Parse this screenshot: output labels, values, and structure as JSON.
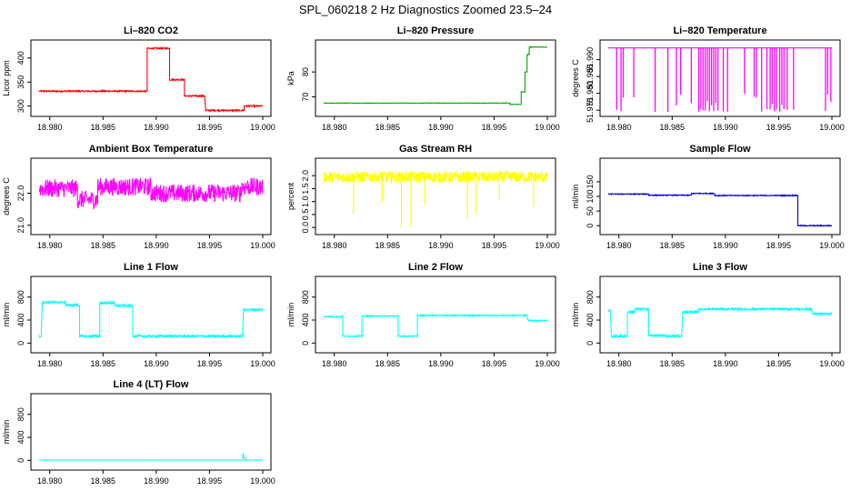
{
  "title": "SPL_060218  2 Hz Diagnostics Zoomed 23.5–24",
  "chart_data": [
    {
      "type": "line",
      "title": "Li–820 CO2",
      "xlabel": "",
      "ylabel": "Licor ppm",
      "xlim": [
        18.979,
        19.0
      ],
      "ylim": [
        288,
        428
      ],
      "color": "#ff0000",
      "xticks": [
        "18.980",
        "18.985",
        "18.990",
        "18.995",
        "19.000"
      ],
      "yticks": [
        "300",
        "350",
        "400"
      ],
      "series": [
        {
          "name": "CO2",
          "noise": 1.5,
          "segments": [
            [
              18.979,
              18.98895,
              331
            ],
            [
              18.98895,
              18.98915,
              331
            ],
            [
              18.98915,
              18.99115,
              420
            ],
            [
              18.99115,
              18.99125,
              420
            ],
            [
              18.99125,
              18.99255,
              355
            ],
            [
              18.99255,
              18.99265,
              355
            ],
            [
              18.99265,
              18.99455,
              321
            ],
            [
              18.99465,
              18.99795,
              291
            ],
            [
              18.99805,
              18.99825,
              291
            ],
            [
              18.99825,
              19.0,
              300
            ]
          ]
        }
      ]
    },
    {
      "type": "line",
      "title": "Li–820 Pressure",
      "xlabel": "",
      "ylabel": "kPa",
      "xlim": [
        18.979,
        19.0
      ],
      "ylim": [
        64,
        91
      ],
      "color": "#00aa00",
      "xticks": [
        "18.980",
        "18.985",
        "18.990",
        "18.995",
        "19.000"
      ],
      "yticks": [
        "70",
        "80"
      ],
      "series": [
        {
          "name": "Pressure",
          "noise": 0.1,
          "segments": [
            [
              18.979,
              18.9965,
              67.5
            ],
            [
              18.9965,
              18.99755,
              67
            ],
            [
              18.99755,
              18.9979,
              72
            ],
            [
              18.9979,
              18.9981,
              80
            ],
            [
              18.9981,
              18.9983,
              87
            ],
            [
              18.9983,
              18.9985,
              90
            ],
            [
              18.9985,
              19.0,
              90
            ]
          ]
        }
      ]
    },
    {
      "type": "line",
      "title": "Li–820 Temperature",
      "xlabel": "",
      "ylabel": "degrees C",
      "xlim": [
        18.979,
        19.0
      ],
      "ylim": [
        51.9745,
        51.9945
      ],
      "color": "#ff00ff",
      "xticks": [
        "18.980",
        "18.985",
        "18.990",
        "18.995",
        "19.000"
      ],
      "yticks": [
        "51.975",
        "51.980",
        "51.985",
        "51.990"
      ],
      "series": [
        {
          "name": "Temperature",
          "base": 51.9935,
          "low": 51.9745,
          "spikes": [
            18.9798,
            18.9802,
            18.9804,
            18.9814,
            18.9834,
            18.9846,
            18.9854,
            18.9858,
            18.9868,
            18.9875,
            18.9877,
            18.9879,
            18.9881,
            18.9883,
            18.9885,
            18.9887,
            18.9889,
            18.9891,
            18.9893,
            18.9898,
            18.9902,
            18.9918,
            18.9927,
            18.9929,
            18.9934,
            18.9939,
            18.9942,
            18.9944,
            18.9946,
            18.9948,
            18.9951,
            18.9953,
            18.9955,
            18.9958,
            18.9964,
            18.9994,
            18.9996,
            18.9999
          ]
        }
      ]
    },
    {
      "type": "line",
      "title": "Ambient Box Temperature",
      "xlabel": "",
      "ylabel": "degrees C",
      "xlim": [
        18.979,
        19.0
      ],
      "ylim": [
        20.85,
        22.95
      ],
      "color": "#ff00ff",
      "xticks": [
        "18.980",
        "18.985",
        "18.990",
        "18.995",
        "19.000"
      ],
      "yticks": [
        "21.0",
        "22.0"
      ],
      "series": [
        {
          "name": "Ambient",
          "noise": 0.28,
          "segments": [
            [
              18.979,
              18.9826,
              22.15
            ],
            [
              18.9826,
              18.9845,
              21.8
            ],
            [
              18.9845,
              18.9895,
              22.2
            ],
            [
              18.9895,
              18.998,
              22.0
            ],
            [
              18.998,
              19.0,
              22.2
            ]
          ]
        }
      ]
    },
    {
      "type": "line",
      "title": "Gas Stream RH",
      "xlabel": "",
      "ylabel": "percent",
      "xlim": [
        18.979,
        19.0
      ],
      "ylim": [
        -0.1,
        2.5
      ],
      "color": "#ffff00",
      "xticks": [
        "18.980",
        "18.985",
        "18.990",
        "18.995",
        "19.000"
      ],
      "yticks": [
        "0.0",
        "0.5",
        "1.0",
        "1.5",
        "2.0"
      ],
      "series": [
        {
          "name": "RH",
          "noise": 0.22,
          "segments": [
            [
              18.979,
              19.0,
              1.95
            ]
          ],
          "dips": [
            [
              18.9818,
              0.5
            ],
            [
              18.9845,
              1.0
            ],
            [
              18.9863,
              0.0
            ],
            [
              18.9872,
              0.05
            ],
            [
              18.9885,
              0.9
            ],
            [
              18.9925,
              0.3
            ],
            [
              18.9933,
              0.5
            ],
            [
              18.9955,
              1.1
            ],
            [
              18.9987,
              0.8
            ]
          ]
        }
      ]
    },
    {
      "type": "line",
      "title": "Sample Flow",
      "xlabel": "",
      "ylabel": "ml/min",
      "xlim": [
        18.979,
        19.0
      ],
      "ylim": [
        -15,
        215
      ],
      "color": "#0000cc",
      "xticks": [
        "18.980",
        "18.985",
        "18.990",
        "18.995",
        "19.000"
      ],
      "yticks": [
        "0",
        "50",
        "100",
        "150"
      ],
      "series": [
        {
          "name": "Sample",
          "noise": 1.5,
          "segments": [
            [
              18.979,
              18.9828,
              108
            ],
            [
              18.9828,
              18.9868,
              104
            ],
            [
              18.9868,
              18.989,
              110
            ],
            [
              18.989,
              18.9965,
              103
            ],
            [
              18.9965,
              18.9968,
              103
            ],
            [
              18.9968,
              18.99705,
              0
            ],
            [
              18.99705,
              19.0,
              0
            ]
          ]
        }
      ]
    },
    {
      "type": "line",
      "title": "Line 1 Flow",
      "xlabel": "",
      "ylabel": "ml/min",
      "xlim": [
        18.979,
        19.0
      ],
      "ylim": [
        -90,
        1080
      ],
      "color": "#00ffff",
      "xticks": [
        "18.980",
        "18.985",
        "18.990",
        "18.995",
        "19.000"
      ],
      "yticks": [
        "0",
        "400",
        "800"
      ],
      "series": [
        {
          "name": "Line1",
          "noise": 20,
          "segments": [
            [
              18.979,
              18.9792,
              120
            ],
            [
              18.9793,
              18.9815,
              710
            ],
            [
              18.9815,
              18.9828,
              660
            ],
            [
              18.9828,
              18.9847,
              120
            ],
            [
              18.9847,
              18.9861,
              700
            ],
            [
              18.9861,
              18.9878,
              650
            ],
            [
              18.9878,
              18.9981,
              120
            ],
            [
              18.9982,
              19.0,
              580
            ]
          ]
        }
      ]
    },
    {
      "type": "line",
      "title": "Line 2 Flow",
      "xlabel": "",
      "ylabel": "ml/min",
      "xlim": [
        18.979,
        19.0
      ],
      "ylim": [
        -90,
        1080
      ],
      "color": "#00ffff",
      "xticks": [
        "18.980",
        "18.985",
        "18.990",
        "18.995",
        "19.000"
      ],
      "yticks": [
        "0",
        "400",
        "800"
      ],
      "series": [
        {
          "name": "Line2",
          "noise": 10,
          "segments": [
            [
              18.979,
              18.9808,
              460
            ],
            [
              18.9808,
              18.9826,
              120
            ],
            [
              18.9826,
              18.986,
              470
            ],
            [
              18.986,
              18.9878,
              120
            ],
            [
              18.9878,
              18.9981,
              480
            ],
            [
              18.9982,
              19.0,
              390
            ]
          ]
        }
      ]
    },
    {
      "type": "line",
      "title": "Line 3 Flow",
      "xlabel": "",
      "ylabel": "ml/min",
      "xlim": [
        18.979,
        19.0
      ],
      "ylim": [
        -90,
        1080
      ],
      "color": "#00ffff",
      "xticks": [
        "18.980",
        "18.985",
        "18.990",
        "18.995",
        "19.000"
      ],
      "yticks": [
        "0",
        "400",
        "800"
      ],
      "series": [
        {
          "name": "Line3",
          "noise": 18,
          "segments": [
            [
              18.979,
              18.9792,
              560
            ],
            [
              18.9793,
              18.9808,
              120
            ],
            [
              18.9808,
              18.9815,
              540
            ],
            [
              18.9815,
              18.9828,
              590
            ],
            [
              18.9828,
              18.9843,
              130
            ],
            [
              18.9843,
              18.9846,
              120
            ],
            [
              18.9846,
              18.9859,
              120
            ],
            [
              18.986,
              18.9875,
              540
            ],
            [
              18.9875,
              18.9981,
              590
            ],
            [
              18.9982,
              19.0,
              510
            ]
          ]
        }
      ]
    },
    {
      "type": "line",
      "title": "Line 4 (LT) Flow",
      "xlabel": "",
      "ylabel": "ml/min",
      "xlim": [
        18.979,
        19.0
      ],
      "ylim": [
        -90,
        1080
      ],
      "color": "#00ffff",
      "xticks": [
        "18.980",
        "18.985",
        "18.990",
        "18.995",
        "19.000"
      ],
      "yticks": [
        "0",
        "400",
        "800"
      ],
      "series": [
        {
          "name": "Line4",
          "noise": 2,
          "segments": [
            [
              18.979,
              18.99815,
              5
            ],
            [
              18.99815,
              18.9982,
              110
            ],
            [
              18.9982,
              18.9984,
              40
            ],
            [
              18.9984,
              19.0,
              5
            ]
          ]
        }
      ]
    }
  ]
}
